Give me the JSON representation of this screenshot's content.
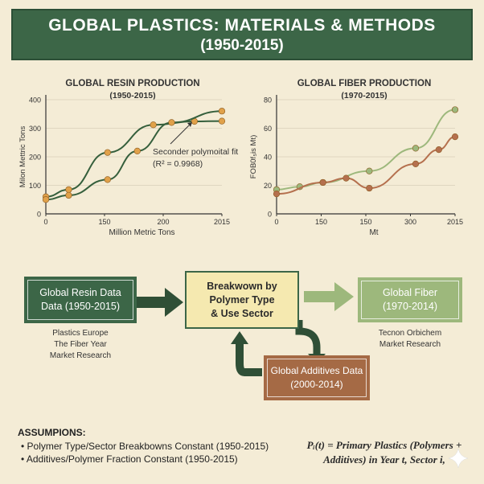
{
  "header": {
    "title_line1": "GLOBAL PLASTICS: MATERIALS & METHODS",
    "title_line2": "(1950-2015)"
  },
  "chart_data": [
    {
      "type": "line",
      "title": "GLOBAL RESIN PRODUCTION",
      "subtitle": "(1950-2015)",
      "xlabel": "Million Metric Tons",
      "ylabel": "Milon Mettric Tons",
      "x_tick_labels": [
        "0",
        "150",
        "200",
        "2015"
      ],
      "y_tick_labels": [
        "0",
        "100",
        "200",
        "300",
        "400"
      ],
      "ylim": [
        0,
        400
      ],
      "annotation": "Seconder polymoital fit (R² = 0.9968)",
      "series": [
        {
          "x": [
            0,
            1,
            2.7,
            4.7,
            6.5,
            7.7
          ],
          "values": [
            60,
            85,
            215,
            312,
            324,
            325
          ],
          "color": "#355f3c"
        },
        {
          "x": [
            0,
            1,
            2.7,
            4,
            5.5,
            7.7
          ],
          "values": [
            50,
            65,
            120,
            220,
            320,
            360
          ],
          "color": "#355f3c"
        }
      ]
    },
    {
      "type": "line",
      "title": "GLOBAL FIBER PRODUCTION",
      "subtitle": "(1970-2015)",
      "xlabel": "Mt",
      "ylabel": "FOB0f₅is Mt)",
      "x_tick_labels": [
        "0",
        "150",
        "150",
        "300",
        "2015"
      ],
      "y_tick_labels": [
        "0",
        "20",
        "40",
        "60",
        "80"
      ],
      "ylim": [
        0,
        80
      ],
      "series": [
        {
          "x": [
            0,
            1,
            2,
            4,
            6,
            7.7
          ],
          "values": [
            17,
            19,
            22,
            30,
            46,
            73
          ],
          "color": "#9db87c"
        },
        {
          "x": [
            0,
            2,
            3,
            4,
            6,
            7,
            7.7
          ],
          "values": [
            14,
            22,
            25,
            18,
            35,
            45,
            54
          ],
          "color": "#b5704e"
        }
      ]
    }
  ],
  "flow": {
    "resin_box": "Global Resin Data Data (1950-2015)",
    "resin_sources": [
      "Plastics Europe",
      "The Fiber Year",
      "Market Research"
    ],
    "breakdown_box": [
      "Breakwown by",
      "Polymer Type",
      "& Use Sector"
    ],
    "fiber_box": [
      "Global Fiber",
      "(1970-2014)"
    ],
    "fiber_sources": [
      "Tecnon Orbichem",
      "Market Research"
    ],
    "additives_box": [
      "Global Additives Data",
      "(2000-2014)"
    ]
  },
  "assumptions": {
    "heading": "ASSUMPIONS:",
    "items": [
      "Polymer Type/Sector Breakbowns Constant (1950-2015)",
      "Additives/Polymer Fraction Constant (1950-2015)"
    ]
  },
  "formula": {
    "line1": "Pᵢ(t) = Primary Plastics (Polymers +",
    "line2": "Additives) in Year t, Sector i,"
  },
  "colors": {
    "dark_green": "#3c6647",
    "light_green": "#9db87c",
    "brown": "#a56a45",
    "cream": "#f4ecd6",
    "yellow_box": "#f5e9b0"
  }
}
